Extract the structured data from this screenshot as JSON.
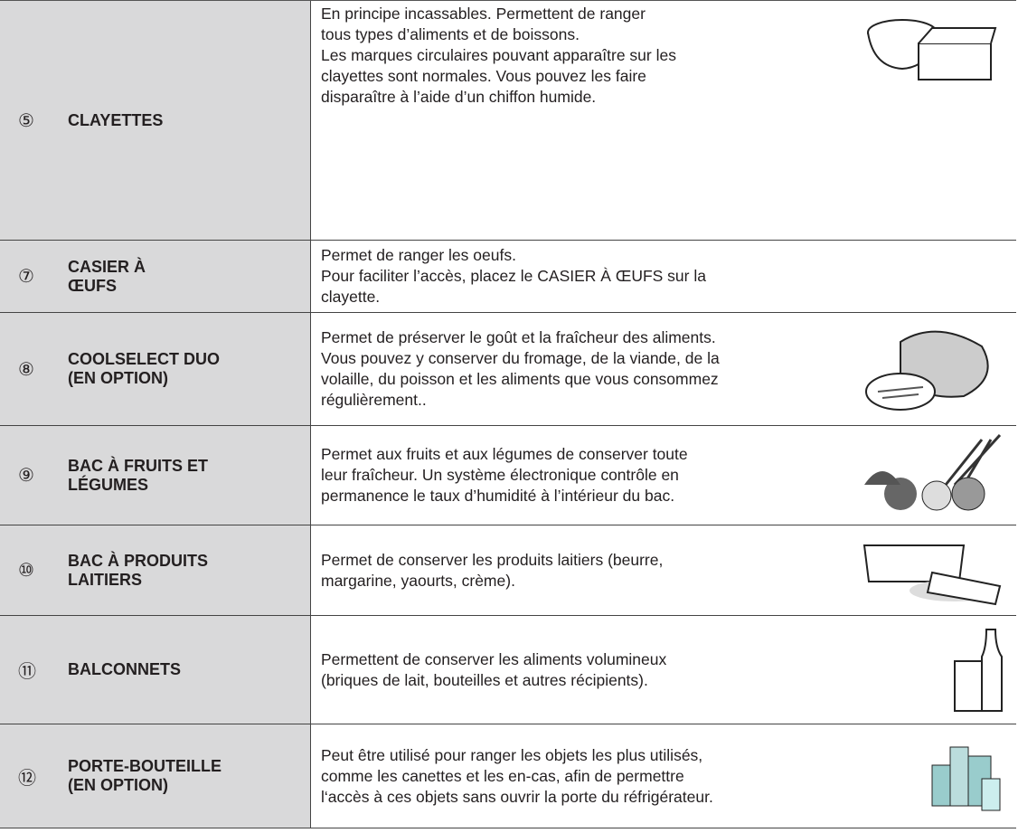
{
  "table": {
    "rows": [
      {
        "number": "⑤",
        "label": [
          "CLAYETTES"
        ],
        "description": [
          "En principe incassables. Permettent de ranger",
          "tous types d’aliments et de boissons.",
          "Les marques circulaires pouvant apparaître sur les",
          "clayettes sont normales. Vous pouvez les faire",
          "disparaître à l’aide d’un chiffon humide."
        ]
      },
      {
        "number": "⑦",
        "label": [
          "CASIER À",
          "ŒUFS"
        ],
        "description": [
          "Permet de ranger les oeufs.",
          "Pour faciliter l’accès, placez le CASIER À ŒUFS sur la",
          "clayette."
        ]
      },
      {
        "number": "⑧",
        "label": [
          "COOLSELECT DUO",
          "(EN OPTION)"
        ],
        "description": [
          "Permet de préserver le goût et la fraîcheur des aliments.",
          "Vous pouvez y conserver du fromage, de la viande, de la",
          "volaille, du poisson et les aliments que vous consommez",
          "régulièrement.."
        ]
      },
      {
        "number": "⑨",
        "label": [
          "BAC À FRUITS ET",
          "LÉGUMES"
        ],
        "description": [
          "Permet aux fruits et aux légumes de conserver toute",
          "leur fraîcheur. Un système électronique contrôle en",
          "permanence le taux d’humidité à l’intérieur du bac."
        ]
      },
      {
        "number": "⑩",
        "label": [
          "BAC À PRODUITS",
          "LAITIERS"
        ],
        "description": [
          "Permet de conserver les produits laitiers (beurre,",
          "margarine, yaourts, crème)."
        ]
      },
      {
        "number": "⑪",
        "label": [
          "BALCONNETS"
        ],
        "description": [
          "Permettent de conserver les aliments volumineux",
          "(briques de lait, bouteilles et autres récipients)."
        ]
      },
      {
        "number": "⑫",
        "label": [
          "PORTE-BOUTEILLE",
          "(EN OPTION)"
        ],
        "description": [
          "Peut être utilisé pour ranger les objets les plus utilisés,",
          "comme les canettes et les en-cas, afin de permettre",
          "l‘accès à ces objets sans ouvrir la porte du réfrigérateur."
        ]
      }
    ]
  }
}
